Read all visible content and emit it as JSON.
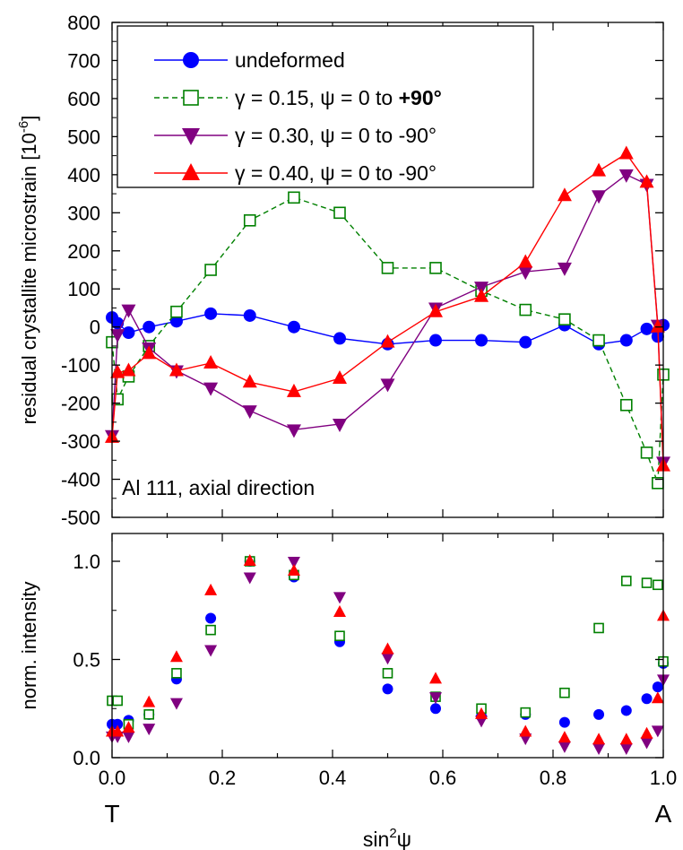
{
  "chart_data": [
    {
      "type": "line",
      "ylabel": "residual crystallite microstrain [10",
      "ylabel_sup": "-6",
      "ylabel_end": "]",
      "ylim": [
        -500,
        800
      ],
      "xlim": [
        0,
        1
      ],
      "yticks": [
        "-500",
        "-400",
        "-300",
        "-200",
        "-100",
        "0",
        "100",
        "200",
        "300",
        "400",
        "500",
        "600",
        "700",
        "800"
      ],
      "annotation": "Al 111, axial direction",
      "legend_position": "top-left",
      "series": [
        {
          "name": "undeformed",
          "color": "#0000ff",
          "marker": "circle",
          "line": "solid",
          "x": [
            0.0,
            0.01,
            0.03,
            0.067,
            0.117,
            0.179,
            0.25,
            0.33,
            0.413,
            0.5,
            0.587,
            0.67,
            0.75,
            0.821,
            0.883,
            0.933,
            0.97,
            0.99,
            1.0
          ],
          "y": [
            25,
            10,
            -15,
            0,
            15,
            35,
            30,
            0,
            -30,
            -45,
            -35,
            -35,
            -40,
            5,
            -45,
            -35,
            -5,
            -25,
            5
          ]
        },
        {
          "name": "γ = 0.15, ψ = 0 to +90°",
          "color": "#008000",
          "marker": "open-square",
          "line": "dashed",
          "x": [
            0.0,
            0.01,
            0.03,
            0.067,
            0.117,
            0.179,
            0.25,
            0.33,
            0.413,
            0.5,
            0.587,
            0.67,
            0.75,
            0.821,
            0.883,
            0.933,
            0.97,
            0.99,
            1.0
          ],
          "y": [
            -40,
            -190,
            -130,
            -50,
            40,
            150,
            280,
            340,
            300,
            155,
            155,
            95,
            45,
            20,
            -35,
            -205,
            -330,
            -410,
            -125
          ]
        },
        {
          "name": "γ = 0.30, ψ = 0 to -90°",
          "color": "#800080",
          "marker": "down-triangle",
          "line": "solid",
          "x": [
            0.0,
            0.01,
            0.03,
            0.067,
            0.117,
            0.179,
            0.25,
            0.33,
            0.413,
            0.5,
            0.587,
            0.67,
            0.75,
            0.821,
            0.883,
            0.933,
            0.97,
            0.99,
            1.0
          ],
          "y": [
            -285,
            -20,
            45,
            -55,
            -115,
            -160,
            -220,
            -270,
            -255,
            -150,
            50,
            105,
            145,
            155,
            345,
            400,
            375,
            5,
            -355
          ]
        },
        {
          "name": "γ = 0.40, ψ = 0 to -90°",
          "color": "#ff0000",
          "marker": "up-triangle",
          "line": "solid",
          "x": [
            0.0,
            0.01,
            0.03,
            0.067,
            0.117,
            0.179,
            0.25,
            0.33,
            0.413,
            0.5,
            0.587,
            0.67,
            0.75,
            0.821,
            0.883,
            0.933,
            0.97,
            0.99,
            1.0
          ],
          "y": [
            -290,
            -120,
            -115,
            -70,
            -115,
            -95,
            -145,
            -170,
            -135,
            -40,
            40,
            80,
            170,
            345,
            410,
            455,
            380,
            0,
            -365
          ]
        }
      ]
    },
    {
      "type": "scatter",
      "ylabel": "norm. intensity",
      "xlabel": "sin",
      "xlabel_sup": "2",
      "xlabel_end": "ψ",
      "ylim": [
        0,
        1
      ],
      "xlim": [
        0,
        1
      ],
      "yticks": [
        "0.0",
        "0.5",
        "1.0"
      ],
      "xticks": [
        "0.0",
        "0.2",
        "0.4",
        "0.6",
        "0.8",
        "1.0"
      ],
      "x_end_labels": {
        "left": "T",
        "right": "A"
      },
      "series": [
        {
          "name": "undeformed",
          "color": "#0000ff",
          "marker": "circle",
          "x": [
            0.0,
            0.01,
            0.03,
            0.067,
            0.117,
            0.179,
            0.25,
            0.33,
            0.413,
            0.5,
            0.587,
            0.67,
            0.75,
            0.821,
            0.883,
            0.933,
            0.97,
            0.99,
            1.0
          ],
          "y": [
            0.17,
            0.17,
            0.19,
            0.22,
            0.4,
            0.71,
            1.0,
            0.92,
            0.59,
            0.35,
            0.25,
            0.21,
            0.22,
            0.18,
            0.22,
            0.24,
            0.3,
            0.36,
            0.48
          ]
        },
        {
          "name": "γ = 0.15, ψ = 0 to +90°",
          "color": "#008000",
          "marker": "open-square",
          "x": [
            0.0,
            0.01,
            0.03,
            0.067,
            0.117,
            0.179,
            0.25,
            0.33,
            0.413,
            0.5,
            0.587,
            0.67,
            0.75,
            0.821,
            0.883,
            0.933,
            0.97,
            0.99,
            1.0
          ],
          "y": [
            0.29,
            0.29,
            0.17,
            0.22,
            0.43,
            0.65,
            1.0,
            0.93,
            0.62,
            0.43,
            0.31,
            0.25,
            0.23,
            0.33,
            0.66,
            0.9,
            0.89,
            0.88,
            0.49
          ]
        },
        {
          "name": "γ = 0.30, ψ = 0 to -90°",
          "color": "#800080",
          "marker": "down-triangle",
          "x": [
            0.0,
            0.01,
            0.03,
            0.067,
            0.117,
            0.179,
            0.25,
            0.33,
            0.413,
            0.5,
            0.587,
            0.67,
            0.75,
            0.821,
            0.883,
            0.933,
            0.97,
            0.99,
            1.0
          ],
          "y": [
            0.11,
            0.11,
            0.11,
            0.15,
            0.28,
            0.55,
            0.92,
            1.0,
            0.82,
            0.51,
            0.31,
            0.19,
            0.1,
            0.06,
            0.05,
            0.05,
            0.08,
            0.14,
            0.4
          ]
        },
        {
          "name": "γ = 0.40, ψ = 0 to -90°",
          "color": "#ff0000",
          "marker": "up-triangle",
          "x": [
            0.0,
            0.01,
            0.03,
            0.067,
            0.117,
            0.179,
            0.25,
            0.33,
            0.413,
            0.5,
            0.587,
            0.67,
            0.75,
            0.821,
            0.883,
            0.933,
            0.97,
            0.99,
            1.0
          ],
          "y": [
            0.13,
            0.13,
            0.15,
            0.28,
            0.51,
            0.85,
            1.0,
            0.95,
            0.74,
            0.55,
            0.4,
            0.22,
            0.13,
            0.1,
            0.09,
            0.09,
            0.12,
            0.3,
            0.72
          ]
        }
      ]
    }
  ]
}
